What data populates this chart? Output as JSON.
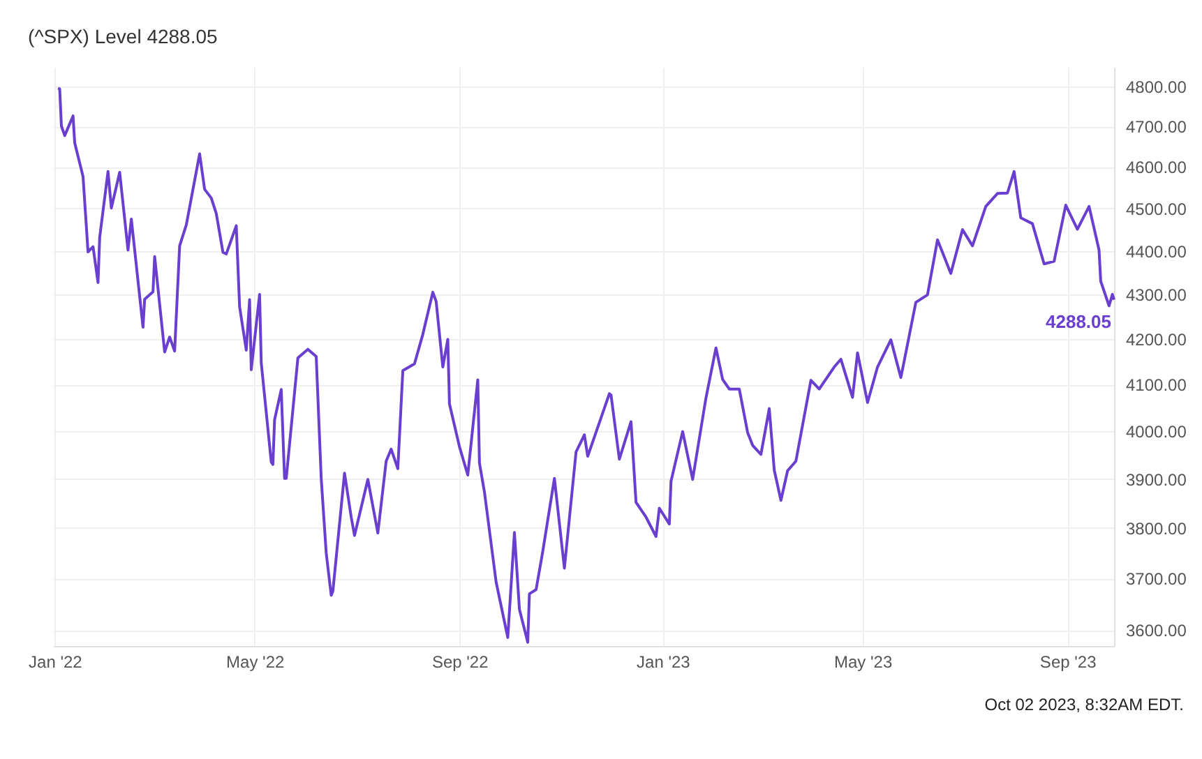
{
  "chart_data": {
    "type": "line",
    "title": "(^SPX) Level 4288.05",
    "x": [
      "2022-01-03",
      "2022-01-04",
      "2022-01-05",
      "2022-01-07",
      "2022-01-12",
      "2022-01-13",
      "2022-01-18",
      "2022-01-21",
      "2022-01-24",
      "2022-01-27",
      "2022-01-28",
      "2022-02-02",
      "2022-02-04",
      "2022-02-09",
      "2022-02-14",
      "2022-02-16",
      "2022-02-23",
      "2022-02-24",
      "2022-03-01",
      "2022-03-02",
      "2022-03-08",
      "2022-03-11",
      "2022-03-14",
      "2022-03-17",
      "2022-03-21",
      "2022-03-29",
      "2022-04-01",
      "2022-04-05",
      "2022-04-08",
      "2022-04-12",
      "2022-04-14",
      "2022-04-20",
      "2022-04-22",
      "2022-04-26",
      "2022-04-28",
      "2022-04-29",
      "2022-05-04",
      "2022-05-05",
      "2022-05-11",
      "2022-05-12",
      "2022-05-13",
      "2022-05-17",
      "2022-05-19",
      "2022-05-20",
      "2022-05-27",
      "2022-06-02",
      "2022-06-07",
      "2022-06-10",
      "2022-06-13",
      "2022-06-16",
      "2022-06-17",
      "2022-06-24",
      "2022-06-28",
      "2022-06-30",
      "2022-07-08",
      "2022-07-14",
      "2022-07-19",
      "2022-07-22",
      "2022-07-26",
      "2022-07-29",
      "2022-08-05",
      "2022-08-10",
      "2022-08-16",
      "2022-08-18",
      "2022-08-22",
      "2022-08-25",
      "2022-08-26",
      "2022-09-01",
      "2022-09-06",
      "2022-09-12",
      "2022-09-13",
      "2022-09-16",
      "2022-09-23",
      "2022-09-30",
      "2022-10-04",
      "2022-10-07",
      "2022-10-12",
      "2022-10-13",
      "2022-10-17",
      "2022-10-21",
      "2022-10-28",
      "2022-11-03",
      "2022-11-10",
      "2022-11-15",
      "2022-11-17",
      "2022-11-30",
      "2022-12-01",
      "2022-12-06",
      "2022-12-13",
      "2022-12-16",
      "2022-12-22",
      "2022-12-28",
      "2022-12-30",
      "2023-01-05",
      "2023-01-06",
      "2023-01-13",
      "2023-01-19",
      "2023-01-27",
      "2023-02-02",
      "2023-02-06",
      "2023-02-10",
      "2023-02-16",
      "2023-02-21",
      "2023-02-24",
      "2023-03-01",
      "2023-03-06",
      "2023-03-09",
      "2023-03-13",
      "2023-03-17",
      "2023-03-22",
      "2023-03-31",
      "2023-04-05",
      "2023-04-14",
      "2023-04-18",
      "2023-04-25",
      "2023-04-28",
      "2023-05-04",
      "2023-05-10",
      "2023-05-18",
      "2023-05-24",
      "2023-05-26",
      "2023-06-02",
      "2023-06-09",
      "2023-06-15",
      "2023-06-23",
      "2023-06-30",
      "2023-07-06",
      "2023-07-14",
      "2023-07-21",
      "2023-07-27",
      "2023-07-31",
      "2023-08-04",
      "2023-08-11",
      "2023-08-18",
      "2023-08-24",
      "2023-08-31",
      "2023-09-07",
      "2023-09-14",
      "2023-09-20",
      "2023-09-21",
      "2023-09-26",
      "2023-09-28",
      "2023-09-29"
    ],
    "series": [
      {
        "color": "#6a3fd0",
        "values": [
          4796,
          4794,
          4701,
          4677,
          4726,
          4659,
          4577,
          4398,
          4410,
          4327,
          4432,
          4589,
          4501,
          4587,
          4402,
          4475,
          4226,
          4289,
          4306,
          4387,
          4171,
          4204,
          4173,
          4412,
          4461,
          4632,
          4546,
          4525,
          4488,
          4397,
          4393,
          4459,
          4272,
          4175,
          4288,
          4132,
          4300,
          4147,
          3935,
          3930,
          4024,
          4089,
          3901,
          3901,
          4158,
          4177,
          4161,
          3901,
          3750,
          3667,
          3675,
          3912,
          3822,
          3785,
          3899,
          3790,
          3937,
          3962,
          3921,
          4130,
          4145,
          4210,
          4305,
          4284,
          4138,
          4199,
          4058,
          3967,
          3908,
          4110,
          3933,
          3873,
          3693,
          3586,
          3791,
          3640,
          3577,
          3670,
          3678,
          3753,
          3901,
          3720,
          3956,
          3992,
          3947,
          4080,
          4077,
          3941,
          4020,
          3852,
          3822,
          3783,
          3840,
          3808,
          3895,
          3999,
          3899,
          4071,
          4180,
          4111,
          4090,
          4090,
          3997,
          3970,
          3951,
          4048,
          3918,
          3856,
          3917,
          3937,
          4109,
          4090,
          4138,
          4155,
          4072,
          4169,
          4061,
          4138,
          4198,
          4115,
          4151,
          4282,
          4299,
          4426,
          4348,
          4450,
          4412,
          4505,
          4536,
          4537,
          4589,
          4478,
          4464,
          4370,
          4376,
          4508,
          4451,
          4505,
          4402,
          4330,
          4274,
          4300,
          4288.05
        ]
      }
    ],
    "log": "y",
    "ylim": [
      3570,
      4850
    ],
    "yticks": [
      {
        "value": 3600,
        "label": "3600.00"
      },
      {
        "value": 3700,
        "label": "3700.00"
      },
      {
        "value": 3800,
        "label": "3800.00"
      },
      {
        "value": 3900,
        "label": "3900.00"
      },
      {
        "value": 4000,
        "label": "4000.00"
      },
      {
        "value": 4100,
        "label": "4100.00"
      },
      {
        "value": 4200,
        "label": "4200.00"
      },
      {
        "value": 4300,
        "label": "4300.00"
      },
      {
        "value": 4400,
        "label": "4400.00"
      },
      {
        "value": 4500,
        "label": "4500.00"
      },
      {
        "value": 4600,
        "label": "4600.00"
      },
      {
        "value": 4700,
        "label": "4700.00"
      },
      {
        "value": 4800,
        "label": "4800.00"
      }
    ],
    "xlim": [
      "2021-12-31",
      "2023-09-29"
    ],
    "xticks": [
      {
        "value": "2022-01-01",
        "label": "Jan '22"
      },
      {
        "value": "2022-05-01",
        "label": "May '22"
      },
      {
        "value": "2022-09-01",
        "label": "Sep '22"
      },
      {
        "value": "2023-01-01",
        "label": "Jan '23"
      },
      {
        "value": "2023-05-01",
        "label": "May '23"
      },
      {
        "value": "2023-09-01",
        "label": "Sep '23"
      }
    ],
    "grid": true,
    "annotations": [
      {
        "text": "4288.05",
        "x": "2023-09-29",
        "y": 4288.05
      },
      "Oct 02 2023, 8:32AM EDT."
    ]
  }
}
